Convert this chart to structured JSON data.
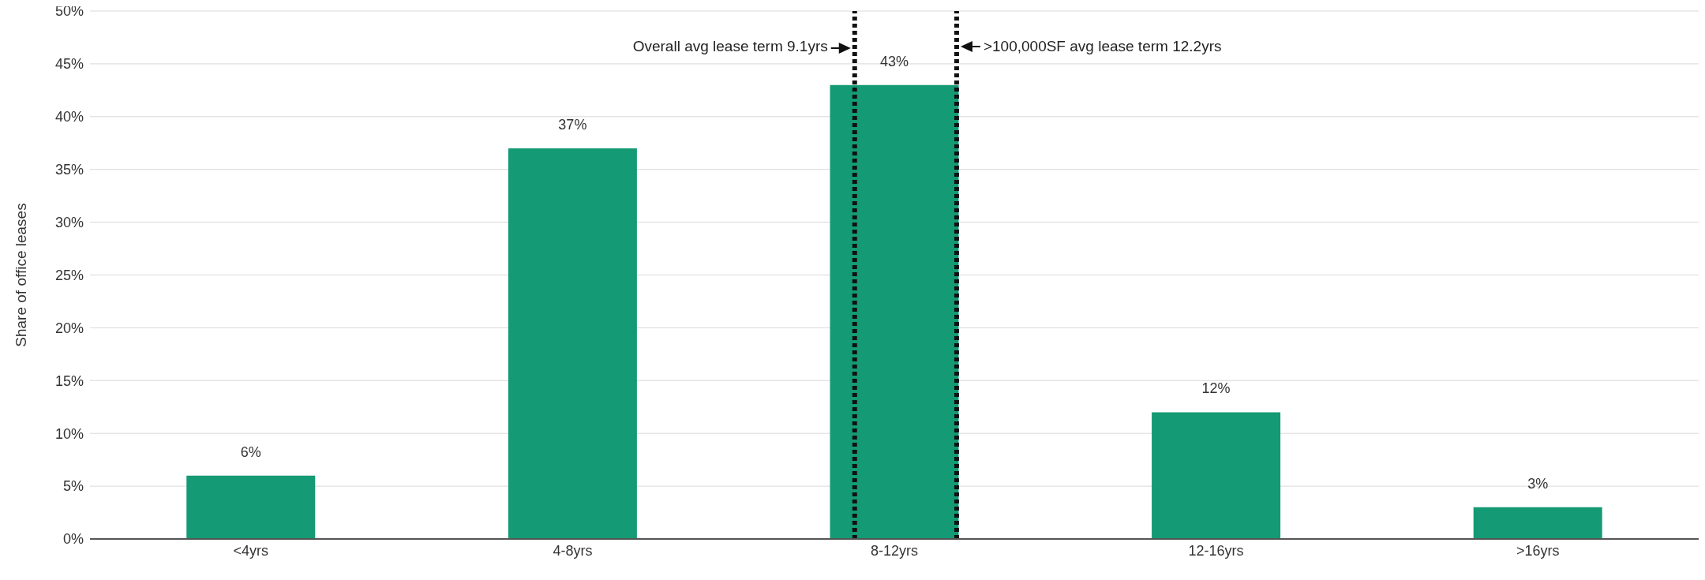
{
  "chart_data": {
    "type": "bar",
    "ylabel": "Share of office leases",
    "categories": [
      "<4yrs",
      "4-8yrs",
      "8-12yrs",
      "12-16yrs",
      ">16yrs"
    ],
    "values": [
      6,
      37,
      43,
      12,
      3
    ],
    "color": "#149a74",
    "value_labels": [
      "6%",
      "37%",
      "43%",
      "12%",
      "3%"
    ],
    "ylim": [
      0,
      50
    ],
    "yticks": [
      {
        "value": 0,
        "label": "0%"
      },
      {
        "value": 5,
        "label": "5%"
      },
      {
        "value": 10,
        "label": "10%"
      },
      {
        "value": 15,
        "label": "15%"
      },
      {
        "value": 20,
        "label": "20%"
      },
      {
        "value": 25,
        "label": "25%"
      },
      {
        "value": 30,
        "label": "30%"
      },
      {
        "value": 35,
        "label": "35%"
      },
      {
        "value": 40,
        "label": "40%"
      },
      {
        "value": 45,
        "label": "45%"
      },
      {
        "value": 50,
        "label": "50%"
      }
    ],
    "grid": "y",
    "ref_lines": [
      {
        "axis": "x",
        "value": "8-12yrs",
        "label": "Overall avg lease term 9.1yrs",
        "color": "#111111",
        "line_style": "dotted"
      },
      {
        "axis": "x",
        "value": "8-12yrs",
        "label": ">100,000SF avg lease term 12.2yrs",
        "color": "#111111",
        "line_style": "dotted"
      }
    ],
    "legend": false
  }
}
